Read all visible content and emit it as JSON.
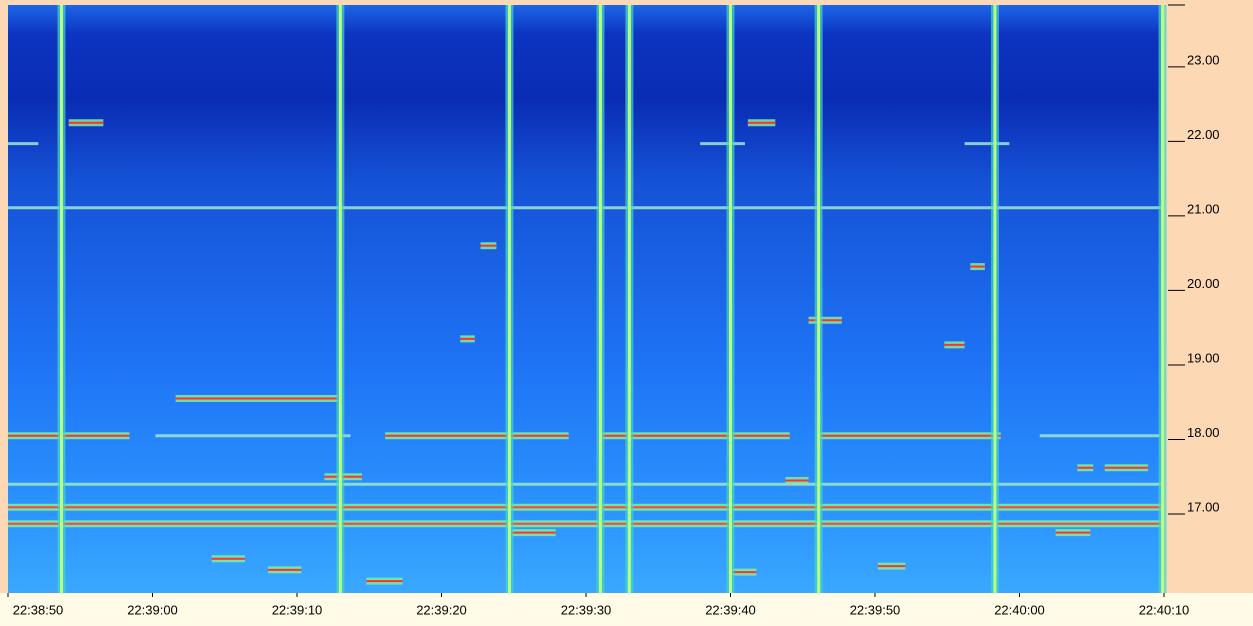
{
  "chart_data": {
    "type": "spectrogram",
    "xlim": [
      82730,
      82810
    ],
    "xticks": [
      {
        "value": 82730,
        "label": "22:38:50"
      },
      {
        "value": 82740,
        "label": "22:39:00"
      },
      {
        "value": 82750,
        "label": "22:39:10"
      },
      {
        "value": 82760,
        "label": "22:39:20"
      },
      {
        "value": 82770,
        "label": "22:39:30"
      },
      {
        "value": 82780,
        "label": "22:39:40"
      },
      {
        "value": 82790,
        "label": "22:39:50"
      },
      {
        "value": 82800,
        "label": "22:40:00"
      },
      {
        "value": 82810,
        "label": "22:40:10"
      }
    ],
    "ylim": [
      15.94,
      23.83
    ],
    "yticks": [
      {
        "value": 17,
        "label": "17.00"
      },
      {
        "value": 18,
        "label": "18.00"
      },
      {
        "value": 19,
        "label": "19.00"
      },
      {
        "value": 20,
        "label": "20.00"
      },
      {
        "value": 21,
        "label": "21.00"
      },
      {
        "value": 22,
        "label": "22.00"
      },
      {
        "value": 23,
        "label": "23.00"
      }
    ],
    "bursts": [
      82733.7,
      82753.0,
      82764.7,
      82771.0,
      82773.0,
      82780.0,
      82786.1,
      82798.3,
      82809.9
    ],
    "signals": [
      {
        "freq": 21.11,
        "start": 82730,
        "end": 82810,
        "color": "#9fe8c8"
      },
      {
        "freq": 17.4,
        "start": 82730,
        "end": 82810,
        "color": "#9fe8c8"
      },
      {
        "freq": 17.09,
        "start": 82730,
        "end": 82810,
        "color": "#ff4040"
      },
      {
        "freq": 16.87,
        "start": 82730,
        "end": 82810,
        "color": "#ff4040"
      },
      {
        "freq": 18.05,
        "start": 82730.0,
        "end": 82738.4,
        "color": "#ff3030"
      },
      {
        "freq": 18.05,
        "start": 82740.2,
        "end": 82753.7,
        "color": "#9fe8c8"
      },
      {
        "freq": 18.05,
        "start": 82756.1,
        "end": 82768.8,
        "color": "#ff3030"
      },
      {
        "freq": 18.05,
        "start": 82771.0,
        "end": 82784.1,
        "color": "#ff3030"
      },
      {
        "freq": 18.05,
        "start": 82786.2,
        "end": 82798.7,
        "color": "#ff3030"
      },
      {
        "freq": 18.05,
        "start": 82801.4,
        "end": 82809.7,
        "color": "#9fe8c8"
      },
      {
        "freq": 18.55,
        "start": 82741.6,
        "end": 82752.8,
        "color": "#ff3030"
      },
      {
        "freq": 17.5,
        "start": 82751.9,
        "end": 82754.5,
        "color": "#ff3030"
      },
      {
        "freq": 17.62,
        "start": 82805.9,
        "end": 82808.9,
        "color": "#ff3030"
      },
      {
        "freq": 17.62,
        "start": 82804.0,
        "end": 82805.1,
        "color": "#ff3030"
      },
      {
        "freq": 16.75,
        "start": 82764.9,
        "end": 82767.9,
        "color": "#ff3030"
      },
      {
        "freq": 16.75,
        "start": 82802.5,
        "end": 82804.9,
        "color": "#ff3030"
      },
      {
        "freq": 16.4,
        "start": 82744.1,
        "end": 82746.4,
        "color": "#ff3030"
      },
      {
        "freq": 16.25,
        "start": 82748.0,
        "end": 82750.3,
        "color": "#ff3030"
      },
      {
        "freq": 16.3,
        "start": 82790.2,
        "end": 82792.1,
        "color": "#ff3030"
      },
      {
        "freq": 16.22,
        "start": 82780.0,
        "end": 82781.8,
        "color": "#ff3030"
      },
      {
        "freq": 16.1,
        "start": 82754.8,
        "end": 82757.3,
        "color": "#ff3030"
      },
      {
        "freq": 19.35,
        "start": 82761.3,
        "end": 82762.3,
        "color": "#ff3030"
      },
      {
        "freq": 19.27,
        "start": 82794.8,
        "end": 82796.2,
        "color": "#ff3030"
      },
      {
        "freq": 19.6,
        "start": 82785.4,
        "end": 82787.7,
        "color": "#ff3030"
      },
      {
        "freq": 22.25,
        "start": 82734.2,
        "end": 82736.6,
        "color": "#ff3030"
      },
      {
        "freq": 22.25,
        "start": 82781.2,
        "end": 82783.1,
        "color": "#ff3030"
      },
      {
        "freq": 20.6,
        "start": 82762.7,
        "end": 82763.8,
        "color": "#ff3030"
      },
      {
        "freq": 20.32,
        "start": 82796.6,
        "end": 82797.6,
        "color": "#ff3030"
      },
      {
        "freq": 17.45,
        "start": 82783.8,
        "end": 82785.4,
        "color": "#ff3030"
      },
      {
        "freq": 21.97,
        "start": 82730.0,
        "end": 82732.1,
        "color": "#9fe8c8"
      },
      {
        "freq": 21.97,
        "start": 82777.9,
        "end": 82781.0,
        "color": "#9fe8c8"
      },
      {
        "freq": 21.97,
        "start": 82796.2,
        "end": 82799.3,
        "color": "#9fe8c8"
      }
    ]
  }
}
